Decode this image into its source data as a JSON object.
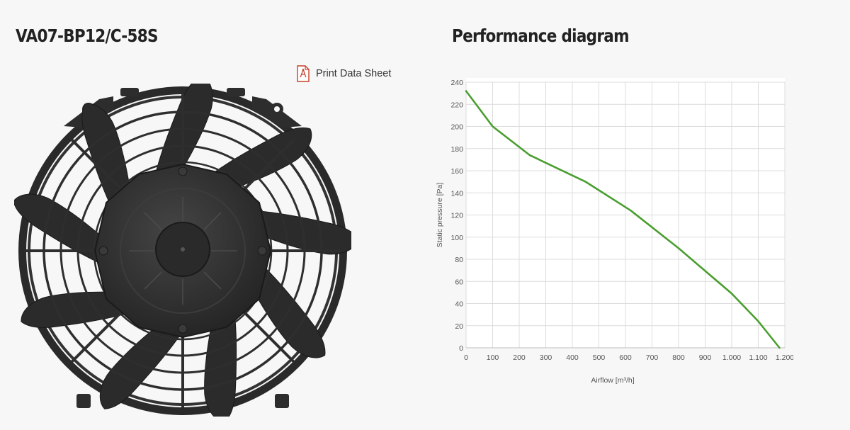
{
  "product": {
    "model": "VA07-BP12/C-58S",
    "print_label": "Print Data Sheet"
  },
  "icons": {
    "print": "pdf-document-icon",
    "fan": "fan-product-image"
  },
  "colors": {
    "curve": "#4a9e2f",
    "pdf_icon": "#c8402a",
    "fan": "#2e2e2e"
  },
  "diagram": {
    "title": "Performance diagram"
  },
  "chart_data": {
    "type": "line",
    "title": "",
    "xlabel": "Airflow [m³/h]",
    "ylabel": "Static pressure [Pa]",
    "xlim": [
      0,
      1200
    ],
    "ylim": [
      0,
      240
    ],
    "x_ticks": [
      0,
      100,
      200,
      300,
      400,
      500,
      600,
      700,
      800,
      900,
      1000,
      1100,
      1200
    ],
    "x_tick_labels": [
      "0",
      "100",
      "200",
      "300",
      "400",
      "500",
      "600",
      "700",
      "800",
      "900",
      "1.000",
      "1.100",
      "1.200"
    ],
    "y_ticks": [
      0,
      20,
      40,
      60,
      80,
      100,
      120,
      140,
      160,
      180,
      200,
      220,
      240
    ],
    "y_tick_labels": [
      "0",
      "20",
      "40",
      "60",
      "80",
      "100",
      "120",
      "140",
      "160",
      "180",
      "200",
      "220",
      "240"
    ],
    "grid": true,
    "series": [
      {
        "color": "#4a9e2f",
        "x": [
          0,
          100,
          240,
          450,
          620,
          800,
          1000,
          1100,
          1180
        ],
        "y": [
          232,
          200,
          174,
          150,
          124,
          90,
          49,
          24,
          0
        ]
      }
    ]
  }
}
